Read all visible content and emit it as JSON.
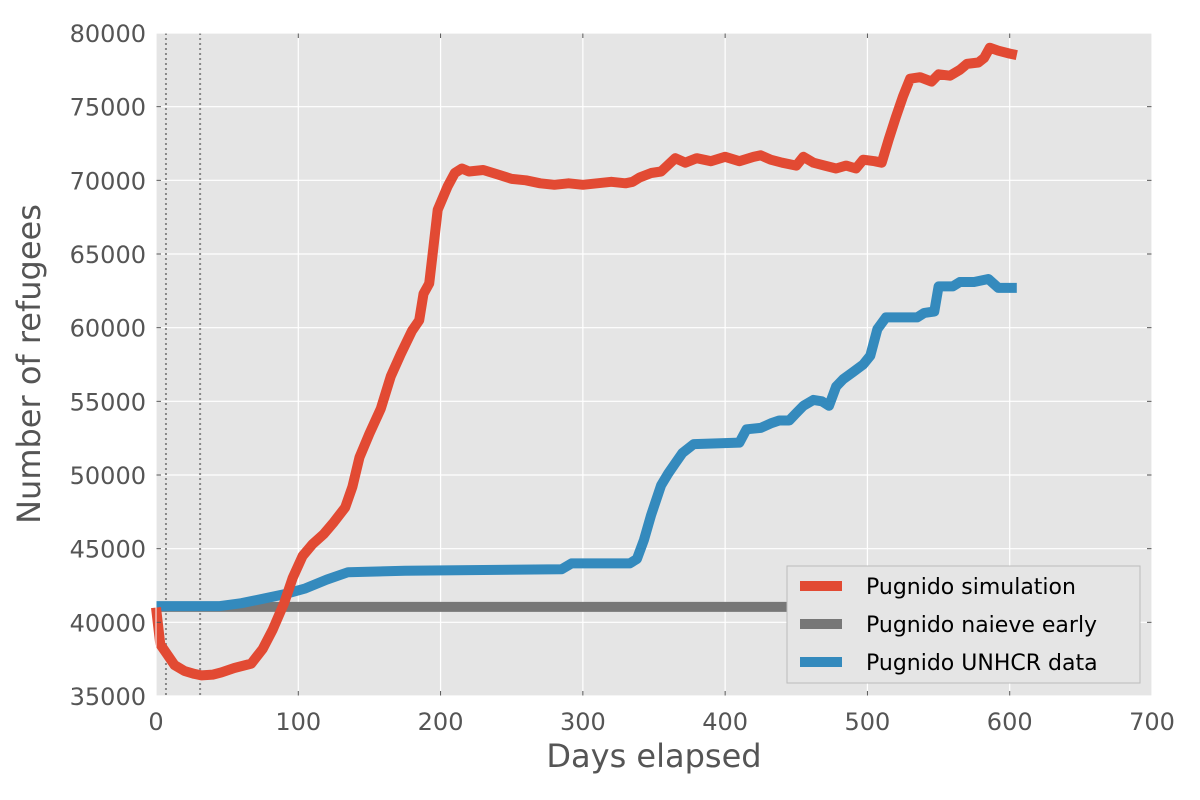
{
  "chart_data": {
    "type": "line",
    "title": "",
    "xlabel": "Days elapsed",
    "ylabel": "Number of refugees",
    "xlim": [
      0,
      700
    ],
    "ylim": [
      35000,
      80000
    ],
    "xticks": [
      0,
      100,
      200,
      300,
      400,
      500,
      600,
      700
    ],
    "yticks": [
      35000,
      40000,
      45000,
      50000,
      55000,
      60000,
      65000,
      70000,
      75000,
      80000
    ],
    "grid": true,
    "legend_position": "lower-right",
    "vlines": [
      7,
      31
    ],
    "series": [
      {
        "name": "Pugnido simulation",
        "color": "#E24A33",
        "points": [
          [
            0,
            41000
          ],
          [
            3,
            38500
          ],
          [
            8,
            37800
          ],
          [
            13,
            37100
          ],
          [
            20,
            36700
          ],
          [
            27,
            36500
          ],
          [
            32,
            36400
          ],
          [
            40,
            36450
          ],
          [
            46,
            36600
          ],
          [
            55,
            36900
          ],
          [
            67,
            37200
          ],
          [
            75,
            38200
          ],
          [
            82,
            39500
          ],
          [
            90,
            41300
          ],
          [
            96,
            43000
          ],
          [
            103,
            44500
          ],
          [
            110,
            45300
          ],
          [
            118,
            46000
          ],
          [
            125,
            46800
          ],
          [
            133,
            47800
          ],
          [
            138,
            49200
          ],
          [
            143,
            51200
          ],
          [
            150,
            52800
          ],
          [
            158,
            54500
          ],
          [
            165,
            56700
          ],
          [
            172,
            58200
          ],
          [
            180,
            59800
          ],
          [
            185,
            60500
          ],
          [
            188,
            62300
          ],
          [
            192,
            63000
          ],
          [
            195,
            65500
          ],
          [
            198,
            68000
          ],
          [
            205,
            69600
          ],
          [
            210,
            70500
          ],
          [
            215,
            70800
          ],
          [
            220,
            70600
          ],
          [
            230,
            70700
          ],
          [
            240,
            70400
          ],
          [
            250,
            70100
          ],
          [
            260,
            70000
          ],
          [
            270,
            69800
          ],
          [
            280,
            69700
          ],
          [
            290,
            69800
          ],
          [
            300,
            69700
          ],
          [
            310,
            69800
          ],
          [
            320,
            69900
          ],
          [
            330,
            69800
          ],
          [
            335,
            69900
          ],
          [
            340,
            70200
          ],
          [
            348,
            70500
          ],
          [
            355,
            70600
          ],
          [
            365,
            71500
          ],
          [
            372,
            71200
          ],
          [
            380,
            71500
          ],
          [
            390,
            71300
          ],
          [
            400,
            71600
          ],
          [
            410,
            71300
          ],
          [
            420,
            71600
          ],
          [
            425,
            71700
          ],
          [
            432,
            71400
          ],
          [
            440,
            71200
          ],
          [
            450,
            71000
          ],
          [
            455,
            71600
          ],
          [
            462,
            71200
          ],
          [
            470,
            71000
          ],
          [
            478,
            70800
          ],
          [
            485,
            71000
          ],
          [
            492,
            70800
          ],
          [
            497,
            71400
          ],
          [
            505,
            71300
          ],
          [
            510,
            71200
          ],
          [
            515,
            72800
          ],
          [
            520,
            74300
          ],
          [
            525,
            75700
          ],
          [
            530,
            76900
          ],
          [
            537,
            77000
          ],
          [
            545,
            76700
          ],
          [
            550,
            77200
          ],
          [
            558,
            77100
          ],
          [
            565,
            77500
          ],
          [
            570,
            77900
          ],
          [
            578,
            78000
          ],
          [
            582,
            78300
          ],
          [
            586,
            79000
          ],
          [
            592,
            78800
          ],
          [
            600,
            78600
          ],
          [
            605,
            78500
          ]
        ]
      },
      {
        "name": "Pugnido naieve early",
        "color": "#777777",
        "points": [
          [
            0,
            41050
          ],
          [
            605,
            41050
          ]
        ]
      },
      {
        "name": "Pugnido UNHCR data",
        "color": "#348ABD",
        "points": [
          [
            0,
            41100
          ],
          [
            20,
            41100
          ],
          [
            45,
            41100
          ],
          [
            60,
            41300
          ],
          [
            75,
            41600
          ],
          [
            90,
            41900
          ],
          [
            105,
            42300
          ],
          [
            120,
            42900
          ],
          [
            135,
            43400
          ],
          [
            175,
            43500
          ],
          [
            230,
            43550
          ],
          [
            285,
            43600
          ],
          [
            292,
            44000
          ],
          [
            300,
            44000
          ],
          [
            333,
            44000
          ],
          [
            338,
            44300
          ],
          [
            343,
            45600
          ],
          [
            348,
            47300
          ],
          [
            355,
            49300
          ],
          [
            360,
            50100
          ],
          [
            365,
            50800
          ],
          [
            370,
            51500
          ],
          [
            378,
            52100
          ],
          [
            410,
            52200
          ],
          [
            415,
            53100
          ],
          [
            425,
            53200
          ],
          [
            432,
            53500
          ],
          [
            438,
            53700
          ],
          [
            445,
            53700
          ],
          [
            450,
            54200
          ],
          [
            455,
            54700
          ],
          [
            462,
            55100
          ],
          [
            468,
            55000
          ],
          [
            473,
            54700
          ],
          [
            478,
            56000
          ],
          [
            483,
            56500
          ],
          [
            490,
            57000
          ],
          [
            497,
            57500
          ],
          [
            502,
            58100
          ],
          [
            507,
            59900
          ],
          [
            513,
            60700
          ],
          [
            520,
            60700
          ],
          [
            535,
            60700
          ],
          [
            540,
            61000
          ],
          [
            547,
            61100
          ],
          [
            550,
            62800
          ],
          [
            560,
            62800
          ],
          [
            565,
            63100
          ],
          [
            575,
            63100
          ],
          [
            585,
            63300
          ],
          [
            592,
            62700
          ],
          [
            605,
            62700
          ]
        ]
      }
    ]
  }
}
